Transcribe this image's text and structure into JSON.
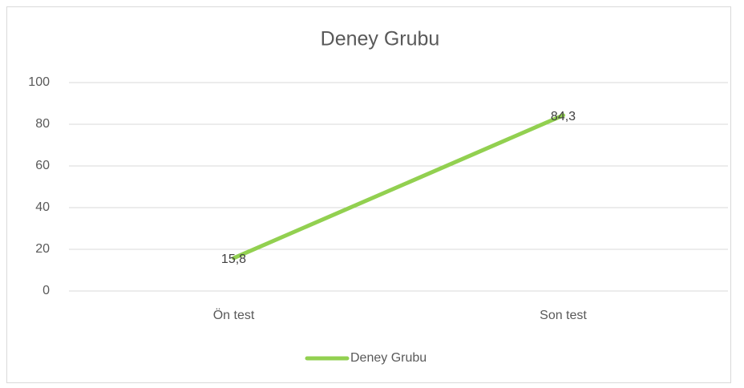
{
  "chart_data": {
    "type": "line",
    "title": "Deney Grubu",
    "categories": [
      "Ön test",
      "Son test"
    ],
    "series": [
      {
        "name": "Deney Grubu",
        "color": "#92d050",
        "values": [
          15.8,
          84.3
        ],
        "value_labels": [
          "15,8",
          "84,3"
        ]
      }
    ],
    "ylim": [
      0,
      100
    ],
    "yticks": [
      0,
      20,
      40,
      60,
      80,
      100
    ],
    "grid": true,
    "legend": "bottom"
  }
}
